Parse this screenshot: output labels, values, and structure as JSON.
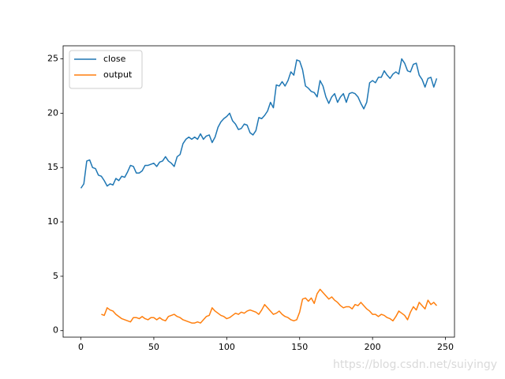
{
  "chart_data": {
    "type": "line",
    "x": [
      0,
      2,
      4,
      6,
      8,
      10,
      12,
      14,
      16,
      18,
      20,
      22,
      24,
      26,
      28,
      30,
      32,
      34,
      36,
      38,
      40,
      42,
      44,
      46,
      48,
      50,
      52,
      54,
      56,
      58,
      60,
      62,
      64,
      66,
      68,
      70,
      72,
      74,
      76,
      78,
      80,
      82,
      84,
      86,
      88,
      90,
      92,
      94,
      96,
      98,
      100,
      102,
      104,
      106,
      108,
      110,
      112,
      114,
      116,
      118,
      120,
      122,
      124,
      126,
      128,
      130,
      132,
      134,
      136,
      138,
      140,
      142,
      144,
      146,
      148,
      150,
      152,
      154,
      156,
      158,
      160,
      162,
      164,
      166,
      168,
      170,
      172,
      174,
      176,
      178,
      180,
      182,
      184,
      186,
      188,
      190,
      192,
      194,
      196,
      198,
      200,
      202,
      204,
      206,
      208,
      210,
      212,
      214,
      216,
      218,
      220,
      222,
      224,
      226,
      228,
      230,
      232,
      234,
      236,
      238,
      240,
      242,
      244
    ],
    "series": [
      {
        "name": "close",
        "color": "#1f77b4",
        "values": [
          13.1,
          13.5,
          15.6,
          15.7,
          15.0,
          14.9,
          14.3,
          14.2,
          13.8,
          13.3,
          13.5,
          13.4,
          14.0,
          13.8,
          14.2,
          14.1,
          14.6,
          15.2,
          15.1,
          14.5,
          14.5,
          14.7,
          15.2,
          15.2,
          15.3,
          15.4,
          15.1,
          15.5,
          15.6,
          16.0,
          15.6,
          15.4,
          15.1,
          16.0,
          16.2,
          17.2,
          17.6,
          17.8,
          17.6,
          17.8,
          17.6,
          18.1,
          17.6,
          17.9,
          18.0,
          17.3,
          17.8,
          18.7,
          19.2,
          19.5,
          19.7,
          20.0,
          19.3,
          19.0,
          18.5,
          18.6,
          19.0,
          18.9,
          18.2,
          18.0,
          18.4,
          19.6,
          19.5,
          19.8,
          20.2,
          21.0,
          20.5,
          22.6,
          22.5,
          22.9,
          22.5,
          23.0,
          23.8,
          23.5,
          24.9,
          24.8,
          24.0,
          22.5,
          22.3,
          22.0,
          21.9,
          21.5,
          23.0,
          22.5,
          21.5,
          20.9,
          21.5,
          21.8,
          21.0,
          21.5,
          21.8,
          21.0,
          21.8,
          21.9,
          21.8,
          21.5,
          20.9,
          20.4,
          21.0,
          22.8,
          23.0,
          22.8,
          23.3,
          23.3,
          23.9,
          23.5,
          23.2,
          23.6,
          23.8,
          23.6,
          25.0,
          24.6,
          23.9,
          23.8,
          24.5,
          24.6,
          23.5,
          23.1,
          22.4,
          23.2,
          23.3,
          22.4,
          23.2
        ]
      },
      {
        "name": "output",
        "color": "#ff7f0e",
        "values": [
          null,
          null,
          null,
          null,
          null,
          null,
          null,
          1.5,
          1.4,
          2.1,
          1.9,
          1.8,
          1.5,
          1.3,
          1.1,
          1.0,
          0.9,
          0.8,
          1.2,
          1.2,
          1.1,
          1.3,
          1.1,
          1.0,
          1.2,
          1.2,
          1.0,
          1.2,
          1.0,
          0.9,
          1.3,
          1.4,
          1.5,
          1.3,
          1.2,
          1.0,
          0.9,
          0.8,
          0.7,
          0.7,
          0.8,
          0.7,
          1.0,
          1.3,
          1.4,
          2.1,
          1.8,
          1.6,
          1.4,
          1.3,
          1.1,
          1.2,
          1.4,
          1.6,
          1.5,
          1.7,
          1.6,
          1.8,
          1.9,
          1.8,
          1.7,
          1.5,
          1.9,
          2.4,
          2.1,
          1.8,
          1.5,
          1.6,
          1.8,
          1.5,
          1.3,
          1.2,
          1.0,
          0.9,
          1.0,
          1.7,
          2.9,
          3.0,
          2.7,
          3.0,
          2.5,
          3.4,
          3.8,
          3.5,
          3.2,
          2.9,
          3.1,
          2.8,
          2.6,
          2.3,
          2.1,
          2.2,
          2.2,
          2.0,
          2.4,
          2.3,
          2.6,
          2.3,
          2.0,
          1.8,
          1.5,
          1.5,
          1.3,
          1.5,
          1.4,
          1.2,
          1.1,
          0.9,
          1.3,
          1.8,
          1.6,
          1.4,
          1.0,
          1.7,
          2.2,
          1.9,
          2.6,
          2.3,
          2.0,
          2.8,
          2.4,
          2.6,
          2.3
        ]
      }
    ],
    "xlim": [
      -12.2,
      256.2
    ],
    "ylim": [
      -0.6,
      26.2
    ],
    "xticks": [
      0,
      50,
      100,
      150,
      200,
      250
    ],
    "yticks": [
      0,
      5,
      10,
      15,
      20,
      25
    ],
    "legend": "upper left",
    "grid": false
  },
  "watermark": "https://blog.csdn.net/suiyingy"
}
